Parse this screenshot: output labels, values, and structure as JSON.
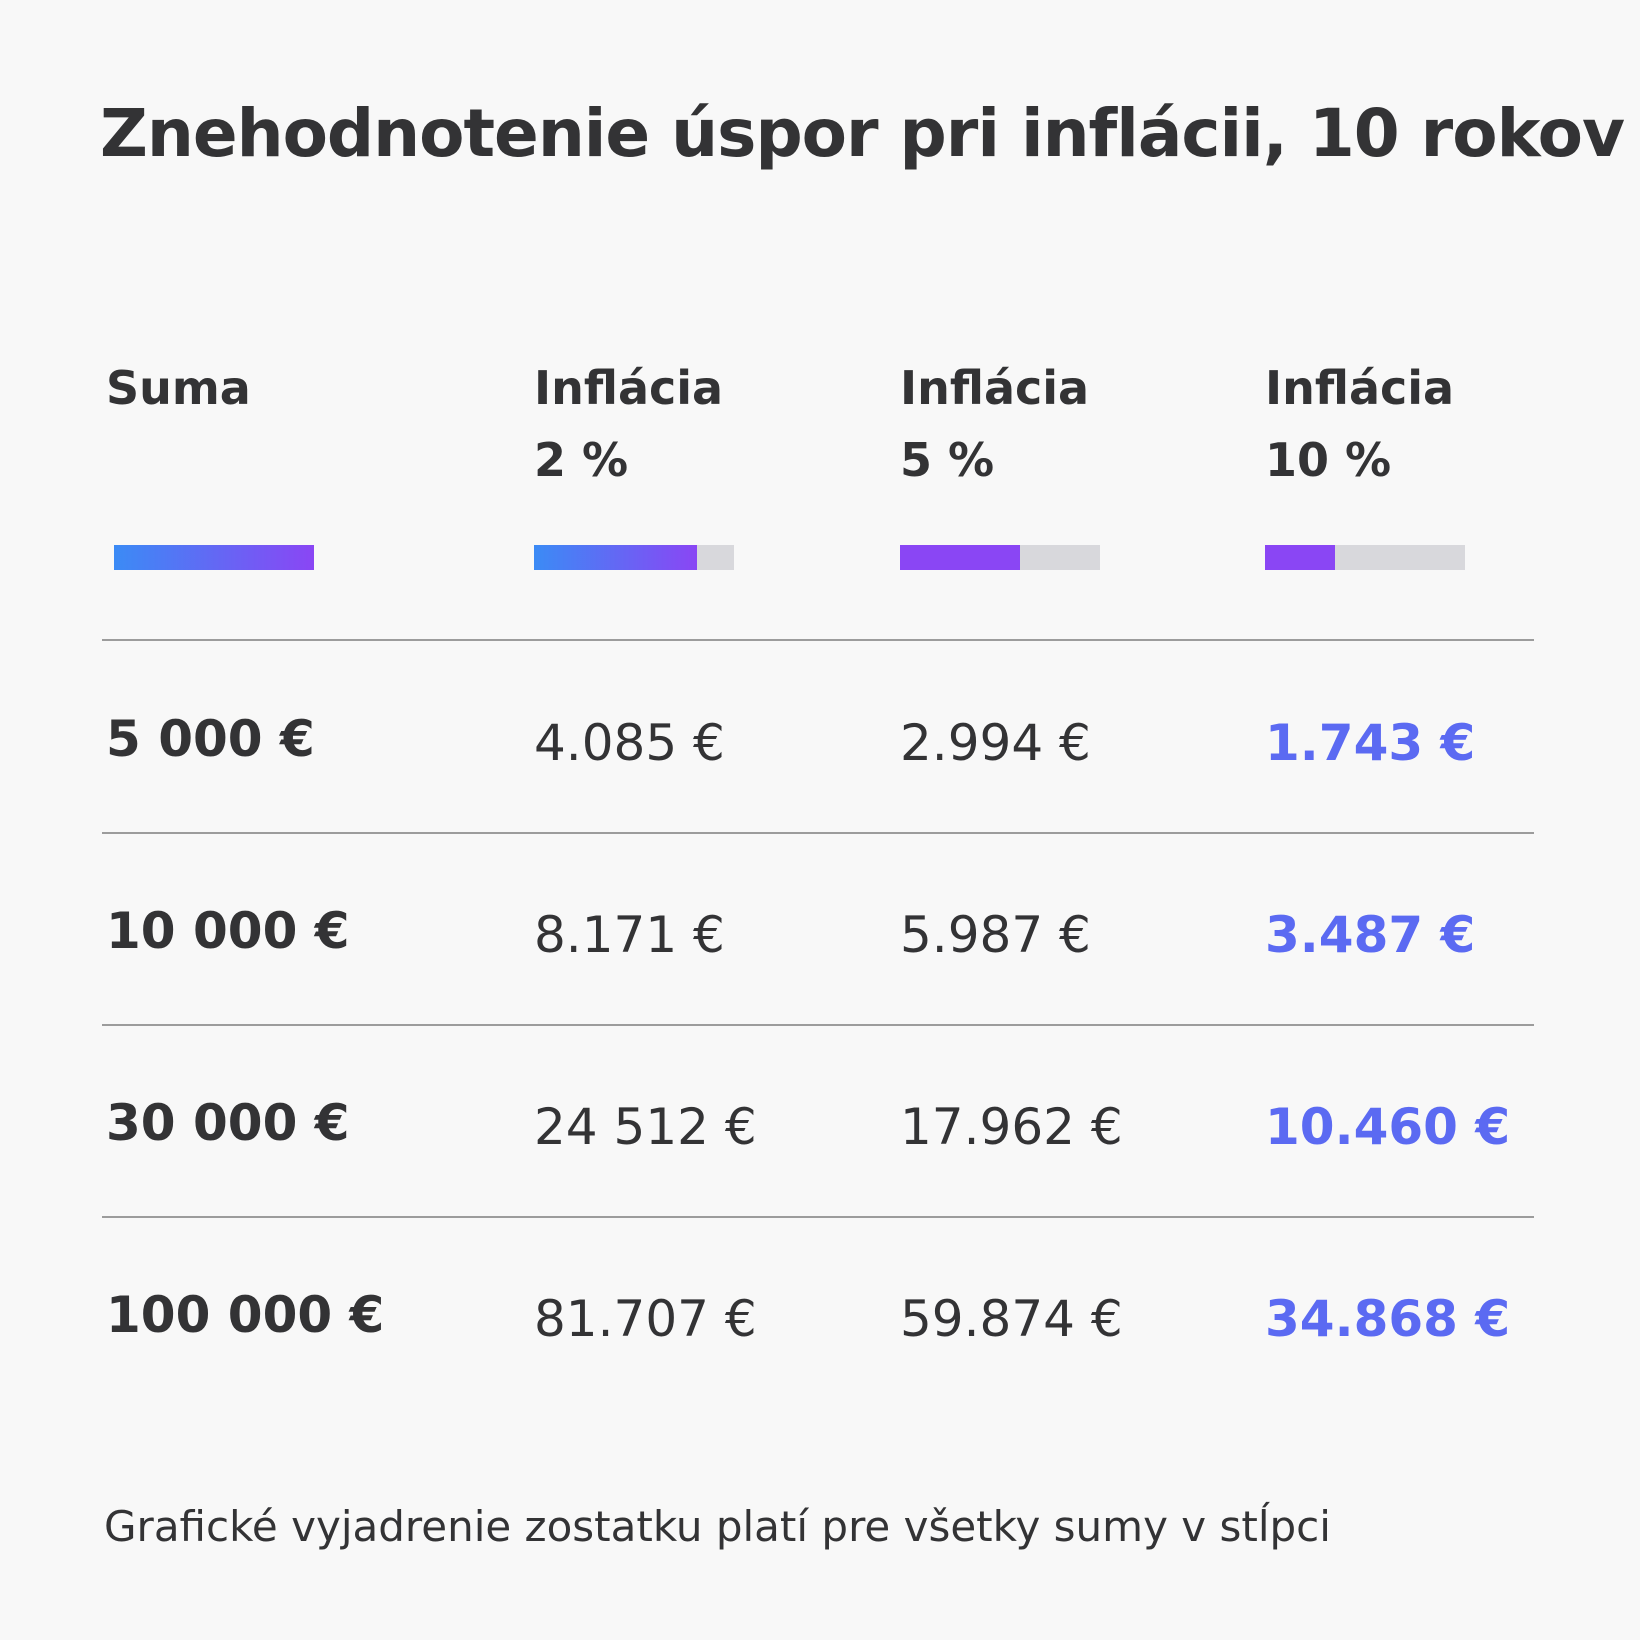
{
  "title": "Znehodnotenie úspor pri inflácii, 10 rokov",
  "columns": [
    {
      "label": "Suma",
      "rate": "",
      "bar_fraction": 1.0
    },
    {
      "label": "Inflácia",
      "rate": "2 %",
      "bar_fraction": 0.8171
    },
    {
      "label": "Inflácia",
      "rate": "5 %",
      "bar_fraction": 0.5987
    },
    {
      "label": "Inflácia",
      "rate": "10 %",
      "bar_fraction": 0.3487
    }
  ],
  "rows": [
    {
      "sum": "5 000 €",
      "v2": "4.085 €",
      "v5": "2.994 €",
      "v10": "1.743 €"
    },
    {
      "sum": "10 000 €",
      "v2": "8.171 €",
      "v5": "5.987 €",
      "v10": "3.487 €"
    },
    {
      "sum": "30 000 €",
      "v2": "24 512 €",
      "v5": "17.962 €",
      "v10": "10.460 €"
    },
    {
      "sum": "100 000 €",
      "v2": "81.707 €",
      "v5": "59.874 €",
      "v10": "34.868 €"
    }
  ],
  "footnote": "Grafické vyjadrenie zostatku platí pre všetky sumy v stĺpci",
  "colors": {
    "background": "#f8f8f8",
    "text": "#333335",
    "highlight": "#5b6af2",
    "gradient_start": "#3b8bf5",
    "gradient_end": "#8a46f4",
    "bar_track": "#d8d8dc",
    "divider": "#9c9c9c"
  }
}
